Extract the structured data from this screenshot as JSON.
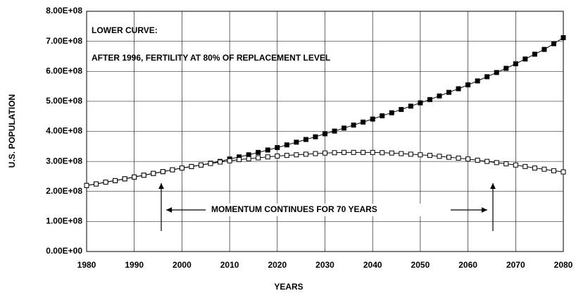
{
  "chart_data": {
    "type": "line",
    "xlabel": "YEARS",
    "ylabel": "U.S. POPULATION",
    "annotations": [
      "LOWER CURVE:",
      "AFTER 1996, FERTILITY  AT 80% OF REPLACEMENT LEVEL",
      "MOMENTUM CONTINUES FOR 70 YEARS"
    ],
    "x": [
      1980,
      1982,
      1984,
      1986,
      1988,
      1990,
      1992,
      1994,
      1996,
      1998,
      2000,
      2002,
      2004,
      2006,
      2008,
      2010,
      2012,
      2014,
      2016,
      2018,
      2020,
      2022,
      2024,
      2026,
      2028,
      2030,
      2032,
      2034,
      2036,
      2038,
      2040,
      2042,
      2044,
      2046,
      2048,
      2050,
      2052,
      2054,
      2056,
      2058,
      2060,
      2062,
      2064,
      2066,
      2068,
      2070,
      2072,
      2074,
      2076,
      2078,
      2080
    ],
    "series": [
      {
        "color": "#000000",
        "fill": "#000000",
        "values": [
          220000000,
          225000000,
          231000000,
          236000000,
          242000000,
          248000000,
          254000000,
          260000000,
          266000000,
          272000000,
          278000000,
          283000000,
          288000000,
          294000000,
          300000000,
          308000000,
          315000000,
          322000000,
          330000000,
          338000000,
          346000000,
          355000000,
          364000000,
          373000000,
          382000000,
          392000000,
          401000000,
          411000000,
          421000000,
          431000000,
          441000000,
          452000000,
          462000000,
          473000000,
          484000000,
          495000000,
          506000000,
          518000000,
          530000000,
          542000000,
          555000000,
          568000000,
          582000000,
          596000000,
          610000000,
          625000000,
          641000000,
          657000000,
          673000000,
          692000000,
          712000000
        ]
      },
      {
        "color": "#000000",
        "fill": "#ffffff",
        "values": [
          220000000,
          225000000,
          231000000,
          236000000,
          242000000,
          248000000,
          254000000,
          260000000,
          266000000,
          272000000,
          278000000,
          283000000,
          288000000,
          293000000,
          298000000,
          302000000,
          306000000,
          309000000,
          312000000,
          315000000,
          318000000,
          320000000,
          322000000,
          324000000,
          326000000,
          328000000,
          329000000,
          330000000,
          330000000,
          330000000,
          330000000,
          329000000,
          328000000,
          326000000,
          324000000,
          322000000,
          320000000,
          317000000,
          314000000,
          311000000,
          308000000,
          304000000,
          300000000,
          296000000,
          292000000,
          288000000,
          283000000,
          278000000,
          274000000,
          269000000,
          265000000
        ]
      }
    ],
    "xlim": [
      1980,
      2080
    ],
    "xticks": [
      1980,
      1990,
      2000,
      2010,
      2020,
      2030,
      2040,
      2050,
      2060,
      2070,
      2080
    ],
    "ylim": [
      0,
      800000000
    ],
    "yticks": [
      {
        "value": 0,
        "label": "0.00E+00"
      },
      {
        "value": 100000000,
        "label": "1.00E+08"
      },
      {
        "value": 200000000,
        "label": "2.00E+08"
      },
      {
        "value": 300000000,
        "label": "3.00E+08"
      },
      {
        "value": 400000000,
        "label": "4.00E+08"
      },
      {
        "value": 500000000,
        "label": "5.00E+08"
      },
      {
        "value": 600000000,
        "label": "6.00E+08"
      },
      {
        "value": 700000000,
        "label": "7.00E+08"
      },
      {
        "value": 800000000,
        "label": "8.00E+08"
      }
    ],
    "grid": true
  }
}
